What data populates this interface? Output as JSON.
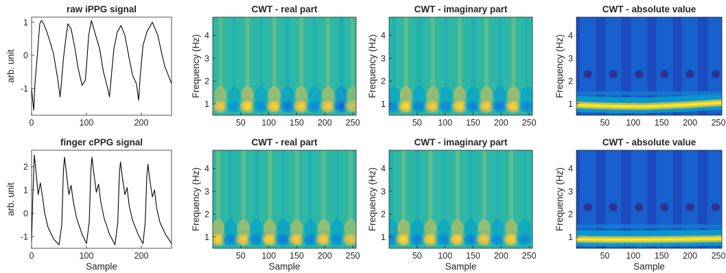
{
  "colors": {
    "parula": [
      "#352a87",
      "#0f5cdd",
      "#1481d6",
      "#06a4ca",
      "#2eb7a4",
      "#87bf77",
      "#d1bb59",
      "#fec832",
      "#f9fb0e"
    ],
    "line": "#000000",
    "axis": "#262626"
  },
  "chart_data": [
    {
      "type": "line",
      "title": "raw iPPG signal",
      "xlabel": "",
      "ylabel": "arb. unit",
      "xlim": [
        0,
        255
      ],
      "ylim": [
        -1.8,
        1.15
      ],
      "xticks": [
        0,
        100,
        200
      ],
      "yticks": [
        -1,
        0,
        1
      ],
      "series": [
        {
          "x": [
            0,
            4,
            6,
            10,
            13,
            15,
            18,
            22,
            27,
            32,
            40,
            48,
            52,
            55,
            58,
            62,
            66,
            72,
            78,
            85,
            92,
            98,
            101,
            104,
            109,
            115,
            124,
            131,
            138,
            142,
            146,
            150,
            156,
            163,
            170,
            178,
            184,
            191,
            195,
            198,
            203,
            210,
            220,
            230,
            238,
            243,
            248,
            255
          ],
          "y": [
            -1.0,
            -1.65,
            -0.9,
            -0.1,
            0.55,
            0.95,
            1.05,
            0.95,
            0.75,
            0.5,
            0.05,
            -0.75,
            -1.25,
            -0.7,
            -0.1,
            0.45,
            0.95,
            0.8,
            0.3,
            -0.4,
            -0.9,
            -0.75,
            -0.1,
            0.6,
            1.05,
            0.7,
            0.2,
            -0.5,
            -0.95,
            -1.25,
            -0.5,
            0.2,
            0.7,
            0.9,
            0.6,
            -0.1,
            -0.6,
            -0.85,
            -1.35,
            -0.6,
            0.3,
            0.7,
            1.0,
            0.6,
            0.0,
            -0.35,
            -0.55,
            -0.85
          ]
        }
      ]
    },
    {
      "type": "heatmap",
      "title": "CWT - real part",
      "xlabel": "",
      "ylabel": "Frequency (Hz)",
      "xlim": [
        0,
        256
      ],
      "ylim": [
        0.5,
        4.8
      ],
      "xticks": [
        50,
        100,
        150,
        200,
        250
      ],
      "yticks": [
        1,
        2,
        3,
        4
      ],
      "blob_x": [
        14,
        38,
        62,
        86,
        110,
        134,
        158,
        182,
        206,
        230,
        250
      ],
      "blob_values": [
        0.75,
        -0.4,
        0.9,
        -0.45,
        0.85,
        -0.6,
        0.8,
        -0.5,
        0.8,
        -0.75,
        0.6
      ]
    },
    {
      "type": "heatmap",
      "title": "CWT - imaginary part",
      "xlabel": "",
      "ylabel": "Frequency (Hz)",
      "xlim": [
        0,
        256
      ],
      "ylim": [
        0.5,
        4.8
      ],
      "xticks": [
        50,
        100,
        150,
        200,
        250
      ],
      "yticks": [
        1,
        2,
        3,
        4
      ],
      "blob_x": [
        8,
        30,
        54,
        78,
        102,
        126,
        150,
        174,
        198,
        222,
        246
      ],
      "blob_values": [
        -0.5,
        0.9,
        -0.55,
        0.8,
        -0.5,
        0.85,
        -0.55,
        0.8,
        -0.6,
        0.85,
        -0.5
      ]
    },
    {
      "type": "heatmap",
      "title": "CWT - absolute value",
      "xlabel": "",
      "ylabel": "Frequency (Hz)",
      "xlim": [
        0,
        256
      ],
      "ylim": [
        0.5,
        4.8
      ],
      "xticks": [
        50,
        100,
        150,
        200,
        250
      ],
      "yticks": [
        1,
        2,
        3,
        4
      ],
      "band_freq": [
        0.95,
        0.9,
        0.88,
        0.95,
        1.05
      ],
      "band_x": [
        0,
        60,
        120,
        190,
        256
      ]
    },
    {
      "type": "line",
      "title": "finger cPPG signal",
      "xlabel": "Sample",
      "ylabel": "arb. unit",
      "xlim": [
        0,
        255
      ],
      "ylim": [
        -1.5,
        2.7
      ],
      "xticks": [
        0,
        100,
        200
      ],
      "yticks": [
        -1,
        0,
        1,
        2
      ],
      "series": [
        {
          "x": [
            0,
            2,
            5,
            8,
            12,
            16,
            20,
            24,
            30,
            40,
            50,
            55,
            58,
            60,
            63,
            68,
            72,
            76,
            82,
            92,
            100,
            105,
            108,
            110,
            113,
            118,
            122,
            126,
            132,
            142,
            152,
            157,
            160,
            162,
            165,
            170,
            174,
            178,
            184,
            194,
            203,
            207,
            210,
            212,
            215,
            220,
            224,
            228,
            234,
            244,
            255
          ],
          "y": [
            -1.2,
            0.5,
            2.5,
            1.8,
            0.8,
            1.3,
            0.7,
            0.0,
            -0.6,
            -1.1,
            -1.35,
            -0.5,
            1.8,
            2.4,
            1.8,
            0.8,
            1.2,
            0.5,
            -0.2,
            -0.9,
            -1.3,
            -0.4,
            1.8,
            2.4,
            1.8,
            0.9,
            1.25,
            0.5,
            -0.2,
            -0.9,
            -1.35,
            -0.4,
            1.7,
            2.2,
            1.6,
            0.8,
            1.1,
            0.3,
            -0.3,
            -0.9,
            -1.3,
            -0.4,
            1.6,
            2.1,
            1.5,
            0.7,
            1.0,
            0.2,
            -0.4,
            -0.9,
            -1.3
          ]
        }
      ]
    },
    {
      "type": "heatmap",
      "title": "CWT - real part",
      "xlabel": "Sample",
      "ylabel": "Frequency (Hz)",
      "xlim": [
        0,
        256
      ],
      "ylim": [
        0.5,
        4.8
      ],
      "xticks": [
        50,
        100,
        150,
        200,
        250
      ],
      "yticks": [
        1,
        2,
        3,
        4
      ],
      "blob_x": [
        10,
        32,
        55,
        78,
        102,
        126,
        150,
        174,
        198,
        222,
        246
      ],
      "blob_values": [
        0.85,
        -0.55,
        0.8,
        -0.55,
        0.85,
        -0.6,
        0.8,
        -0.55,
        0.8,
        -0.5,
        0.7
      ]
    },
    {
      "type": "heatmap",
      "title": "CWT - imaginary part",
      "xlabel": "Sample",
      "ylabel": "Frequency (Hz)",
      "xlim": [
        0,
        256
      ],
      "ylim": [
        0.5,
        4.8
      ],
      "xticks": [
        50,
        100,
        150,
        200,
        250
      ],
      "yticks": [
        1,
        2,
        3,
        4
      ],
      "blob_x": [
        4,
        26,
        50,
        74,
        98,
        122,
        146,
        170,
        194,
        218,
        242
      ],
      "blob_values": [
        -0.5,
        0.9,
        -0.55,
        0.85,
        -0.5,
        0.85,
        -0.55,
        0.8,
        -0.5,
        0.85,
        -0.5
      ]
    },
    {
      "type": "heatmap",
      "title": "CWT - absolute value",
      "xlabel": "Sample",
      "ylabel": "Frequency (Hz)",
      "xlim": [
        0,
        256
      ],
      "ylim": [
        0.5,
        4.8
      ],
      "xticks": [
        50,
        100,
        150,
        200,
        250
      ],
      "yticks": [
        1,
        2,
        3,
        4
      ],
      "band_freq": [
        0.9,
        0.88,
        0.88,
        0.9,
        0.92
      ],
      "band_x": [
        0,
        60,
        120,
        190,
        256
      ]
    }
  ]
}
